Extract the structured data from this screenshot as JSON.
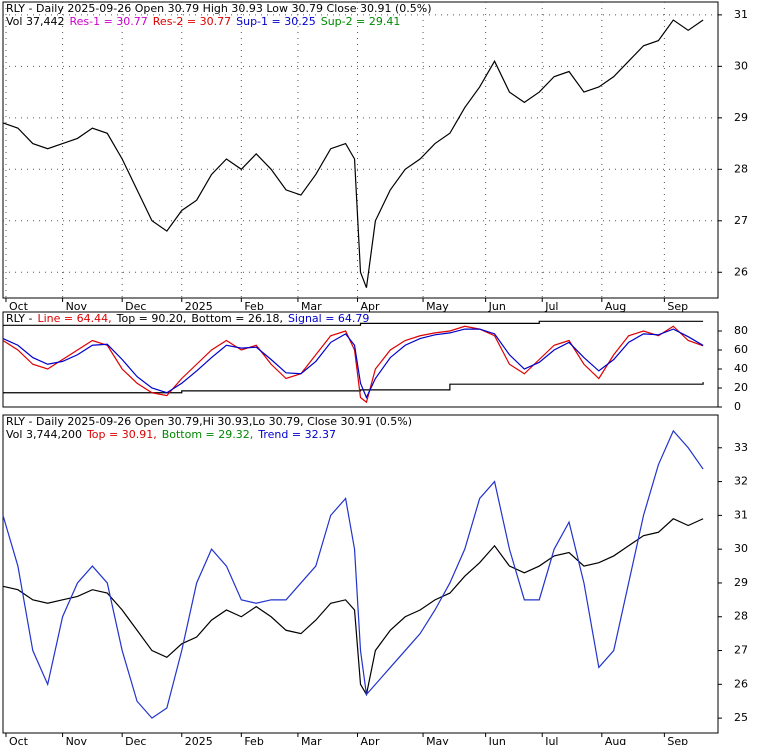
{
  "chart_data": [
    {
      "type": "line",
      "header": [
        [
          {
            "text": "RLY - Daily 2025-09-26 Open 30.79  High 30.93  Low 30.79  Close 30.91 (0.5%)",
            "color": "#000000"
          }
        ],
        [
          {
            "text": "Vol 37,442",
            "color": "#000000"
          },
          {
            "text": "Res-1 = 30.77",
            "color": "#cc00cc"
          },
          {
            "text": "Res-2 = 30.77",
            "color": "#dd0000"
          },
          {
            "text": "Sup-1 = 30.25",
            "color": "#0000cc"
          },
          {
            "text": "Sup-2 = 29.41",
            "color": "#008800"
          }
        ]
      ],
      "x": [
        0,
        0.25,
        0.5,
        0.75,
        1,
        1.25,
        1.5,
        1.75,
        2,
        2.25,
        2.5,
        2.75,
        3,
        3.25,
        3.5,
        3.75,
        4,
        4.25,
        4.5,
        4.75,
        5,
        5.25,
        5.5,
        5.75,
        5.9,
        6,
        6.1,
        6.25,
        6.5,
        6.75,
        7,
        7.25,
        7.5,
        7.75,
        8,
        8.25,
        8.5,
        8.75,
        9,
        9.25,
        9.5,
        9.75,
        10,
        10.25,
        10.5,
        10.75,
        11,
        11.25,
        11.5,
        11.75
      ],
      "series": [
        {
          "color": "#000000",
          "values": [
            28.9,
            28.8,
            28.5,
            28.4,
            28.5,
            28.6,
            28.8,
            28.7,
            28.2,
            27.6,
            27.0,
            26.8,
            27.2,
            27.4,
            27.9,
            28.2,
            28.0,
            28.3,
            28.0,
            27.6,
            27.5,
            27.9,
            28.4,
            28.5,
            28.2,
            26.0,
            25.7,
            27.0,
            27.6,
            28.0,
            28.2,
            28.5,
            28.7,
            29.2,
            29.6,
            30.1,
            29.5,
            29.3,
            29.5,
            29.8,
            29.9,
            29.5,
            29.6,
            29.8,
            30.1,
            30.4,
            30.5,
            30.9,
            30.7,
            30.9
          ]
        }
      ],
      "xlim": [
        0,
        12
      ],
      "xticks": [
        {
          "value": 0.05,
          "label": "Oct"
        },
        {
          "value": 1,
          "label": "Nov"
        },
        {
          "value": 2,
          "label": "Dec"
        },
        {
          "value": 3,
          "label": "2025"
        },
        {
          "value": 4,
          "label": "Feb"
        },
        {
          "value": 4.95,
          "label": "Mar"
        },
        {
          "value": 5.95,
          "label": "Apr"
        },
        {
          "value": 7.05,
          "label": "May"
        },
        {
          "value": 8.1,
          "label": "Jun"
        },
        {
          "value": 9.05,
          "label": "Jul"
        },
        {
          "value": 10.05,
          "label": "Aug"
        },
        {
          "value": 11.1,
          "label": "Sep"
        }
      ],
      "ylim": [
        25.5,
        31.25
      ],
      "yticks": [
        26,
        27,
        28,
        29,
        30,
        31
      ],
      "grid": true
    },
    {
      "type": "line",
      "header": [
        [
          {
            "text": "RLY -",
            "color": "#000000"
          },
          {
            "text": "Line = 64.44,",
            "color": "#dd0000"
          },
          {
            "text": "Top = 90.20,",
            "color": "#000000"
          },
          {
            "text": "Bottom = 26.18,",
            "color": "#000000"
          },
          {
            "text": "Signal = 64.79",
            "color": "#0000cc"
          }
        ]
      ],
      "x": [
        0,
        0.25,
        0.5,
        0.75,
        1,
        1.25,
        1.5,
        1.75,
        2,
        2.25,
        2.5,
        2.75,
        3,
        3.25,
        3.5,
        3.75,
        4,
        4.25,
        4.5,
        4.75,
        5,
        5.25,
        5.5,
        5.75,
        5.9,
        6,
        6.1,
        6.25,
        6.5,
        6.75,
        7,
        7.25,
        7.5,
        7.75,
        8,
        8.25,
        8.5,
        8.75,
        9,
        9.25,
        9.5,
        9.75,
        10,
        10.25,
        10.5,
        10.75,
        11,
        11.25,
        11.5,
        11.75
      ],
      "series": [
        {
          "color": "#000000",
          "step": true,
          "x": [
            0,
            3,
            6,
            9,
            11.75
          ],
          "values": [
            86,
            86,
            88,
            90.2,
            90.2
          ]
        },
        {
          "color": "#000000",
          "step": true,
          "x": [
            0,
            3,
            6,
            7.5,
            11.75
          ],
          "values": [
            15,
            17,
            18,
            24,
            26.18
          ]
        },
        {
          "color": "#dd0000",
          "values": [
            70,
            60,
            45,
            40,
            50,
            60,
            70,
            65,
            40,
            25,
            15,
            12,
            30,
            45,
            60,
            70,
            60,
            65,
            45,
            30,
            35,
            55,
            75,
            80,
            60,
            10,
            5,
            40,
            60,
            70,
            75,
            78,
            80,
            85,
            82,
            75,
            45,
            35,
            50,
            65,
            70,
            45,
            30,
            55,
            75,
            80,
            75,
            85,
            70,
            64.44
          ]
        },
        {
          "color": "#0000cc",
          "values": [
            72,
            65,
            52,
            45,
            48,
            55,
            65,
            66,
            50,
            32,
            20,
            15,
            25,
            38,
            52,
            65,
            62,
            63,
            50,
            36,
            35,
            48,
            68,
            77,
            65,
            25,
            10,
            30,
            52,
            65,
            72,
            76,
            78,
            82,
            82,
            77,
            55,
            40,
            47,
            60,
            68,
            52,
            38,
            50,
            68,
            77,
            76,
            82,
            74,
            64.79
          ]
        }
      ],
      "xlim": [
        0,
        12
      ],
      "ylim": [
        0,
        100
      ],
      "yticks": [
        0,
        20,
        40,
        60,
        80
      ],
      "grid": false
    },
    {
      "type": "line",
      "header": [
        [
          {
            "text": "RLY - Daily 2025-09-26 Open 30.79,Hi 30.93,Lo 30.79, Close 30.91 (0.5%)",
            "color": "#000000"
          }
        ],
        [
          {
            "text": "Vol 3,744,200",
            "color": "#000000"
          },
          {
            "text": "Top = 30.91,",
            "color": "#dd0000"
          },
          {
            "text": "Bottom = 29.32,",
            "color": "#008800"
          },
          {
            "text": "Trend = 32.37",
            "color": "#0000cc"
          }
        ]
      ],
      "x": [
        0,
        0.25,
        0.5,
        0.75,
        1,
        1.25,
        1.5,
        1.75,
        2,
        2.25,
        2.5,
        2.75,
        3,
        3.25,
        3.5,
        3.75,
        4,
        4.25,
        4.5,
        4.75,
        5,
        5.25,
        5.5,
        5.75,
        5.9,
        6,
        6.1,
        6.25,
        6.5,
        6.75,
        7,
        7.25,
        7.5,
        7.75,
        8,
        8.25,
        8.5,
        8.75,
        9,
        9.25,
        9.5,
        9.75,
        10,
        10.25,
        10.5,
        10.75,
        11,
        11.25,
        11.5,
        11.75
      ],
      "series": [
        {
          "color": "#000000",
          "values": [
            28.9,
            28.8,
            28.5,
            28.4,
            28.5,
            28.6,
            28.8,
            28.7,
            28.2,
            27.6,
            27.0,
            26.8,
            27.2,
            27.4,
            27.9,
            28.2,
            28.0,
            28.3,
            28.0,
            27.6,
            27.5,
            27.9,
            28.4,
            28.5,
            28.2,
            26.0,
            25.7,
            27.0,
            27.6,
            28.0,
            28.2,
            28.5,
            28.7,
            29.2,
            29.6,
            30.1,
            29.5,
            29.3,
            29.5,
            29.8,
            29.9,
            29.5,
            29.6,
            29.8,
            30.1,
            30.4,
            30.5,
            30.9,
            30.7,
            30.9
          ]
        },
        {
          "color": "#2233cc",
          "values": [
            31,
            29.5,
            27,
            26,
            28,
            29,
            29.5,
            29,
            27,
            25.5,
            25,
            25.3,
            27,
            29,
            30,
            29.5,
            28.5,
            28.4,
            28.5,
            28.5,
            29,
            29.5,
            31,
            31.5,
            30,
            27,
            25.7,
            26,
            26.5,
            27,
            27.5,
            28.2,
            29,
            30,
            31.5,
            32,
            30,
            28.5,
            28.5,
            30,
            30.8,
            29,
            26.5,
            27,
            29,
            31,
            32.5,
            33.5,
            33,
            32.37
          ]
        }
      ],
      "xlim": [
        0,
        12
      ],
      "xticks": [
        {
          "value": 0.05,
          "label": "Oct"
        },
        {
          "value": 1,
          "label": "Nov"
        },
        {
          "value": 2,
          "label": "Dec"
        },
        {
          "value": 3,
          "label": "2025"
        },
        {
          "value": 4,
          "label": "Feb"
        },
        {
          "value": 4.95,
          "label": "Mar"
        },
        {
          "value": 5.95,
          "label": "Apr"
        },
        {
          "value": 7.05,
          "label": "May"
        },
        {
          "value": 8.1,
          "label": "Jun"
        },
        {
          "value": 9.05,
          "label": "Jul"
        },
        {
          "value": 10.05,
          "label": "Aug"
        },
        {
          "value": 11.1,
          "label": "Sep"
        }
      ],
      "ylim": [
        24.56,
        33.97
      ],
      "yticks": [
        25,
        26,
        27,
        28,
        29,
        30,
        31,
        32,
        33
      ],
      "grid": false
    }
  ]
}
